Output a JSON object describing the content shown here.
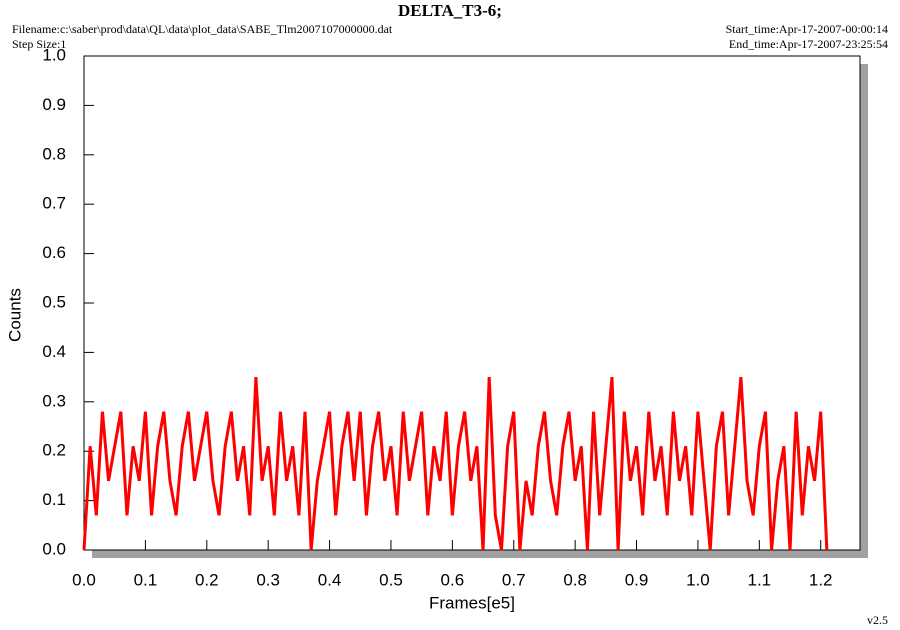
{
  "chart_data": {
    "type": "line",
    "title": "DELTA_T3-6;",
    "filename": "Filename:c:\\saber\\prod\\data\\QL\\data\\plot_data\\SABE_Tlm2007107000000.dat",
    "step_size": "Step Size:1",
    "start_time": "Start_time:Apr-17-2007-00:00:14",
    "end_time": "End_time:Apr-17-2007-23:25:54",
    "version": "v2.5",
    "x_label": "Frames[e5]",
    "y_label": "Counts",
    "color": "#ff0000",
    "xlim": [
      0,
      1.264
    ],
    "ylim": [
      0,
      1.0
    ],
    "xticks": [
      {
        "value": 0,
        "label": "0.0"
      },
      0.1,
      0.2,
      0.3,
      0.4,
      0.5,
      0.6,
      0.7,
      0.8,
      0.9,
      {
        "value": 1,
        "label": "1.0"
      },
      1.1,
      1.2
    ],
    "yticks": [
      {
        "value": 0,
        "label": "0.0"
      },
      0.1,
      0.2,
      0.3,
      0.4,
      0.5,
      0.6,
      0.7,
      0.8,
      0.9,
      {
        "value": 1,
        "label": "1.0"
      }
    ],
    "x": [
      0,
      0.01,
      0.02,
      0.03,
      0.04,
      0.05,
      0.06,
      0.07,
      0.08,
      0.09,
      0.1,
      0.11,
      0.12,
      0.13,
      0.14,
      0.15,
      0.16,
      0.17,
      0.18,
      0.19,
      0.2,
      0.21,
      0.22,
      0.23,
      0.24,
      0.25,
      0.26,
      0.27,
      0.28,
      0.29,
      0.3,
      0.31,
      0.32,
      0.33,
      0.34,
      0.35,
      0.36,
      0.37,
      0.38,
      0.39,
      0.4,
      0.41,
      0.42,
      0.43,
      0.44,
      0.45,
      0.46,
      0.47,
      0.48,
      0.49,
      0.5,
      0.51,
      0.52,
      0.53,
      0.54,
      0.55,
      0.56,
      0.57,
      0.58,
      0.59,
      0.6,
      0.61,
      0.62,
      0.63,
      0.64,
      0.65,
      0.66,
      0.67,
      0.68,
      0.69,
      0.7,
      0.71,
      0.72,
      0.73,
      0.74,
      0.75,
      0.76,
      0.77,
      0.78,
      0.79,
      0.8,
      0.81,
      0.82,
      0.83,
      0.84,
      0.85,
      0.86,
      0.87,
      0.88,
      0.89,
      0.9,
      0.91,
      0.92,
      0.93,
      0.94,
      0.95,
      0.96,
      0.97,
      0.98,
      0.99,
      1,
      1.01,
      1.02,
      1.03,
      1.04,
      1.05,
      1.06,
      1.07,
      1.08,
      1.09,
      1.1,
      1.11,
      1.12,
      1.13,
      1.14,
      1.15,
      1.16,
      1.17,
      1.18,
      1.19,
      1.2,
      1.21
    ],
    "values": [
      0,
      0.21,
      0.07,
      0.28,
      0.14,
      0.21,
      0.28,
      0.07,
      0.21,
      0.14,
      0.28,
      0.07,
      0.21,
      0.28,
      0.14,
      0.07,
      0.21,
      0.28,
      0.14,
      0.21,
      0.28,
      0.14,
      0.07,
      0.21,
      0.28,
      0.14,
      0.21,
      0.07,
      0.35,
      0.14,
      0.21,
      0.07,
      0.28,
      0.14,
      0.21,
      0.07,
      0.28,
      0,
      0.14,
      0.21,
      0.28,
      0.07,
      0.21,
      0.28,
      0.14,
      0.28,
      0.07,
      0.21,
      0.28,
      0.14,
      0.21,
      0.07,
      0.28,
      0.14,
      0.21,
      0.28,
      0.07,
      0.21,
      0.14,
      0.28,
      0.07,
      0.21,
      0.28,
      0.14,
      0.21,
      0,
      0.35,
      0.07,
      0,
      0.21,
      0.28,
      0,
      0.14,
      0.07,
      0.21,
      0.28,
      0.14,
      0.07,
      0.21,
      0.28,
      0.14,
      0.21,
      0,
      0.28,
      0.07,
      0.21,
      0.35,
      0,
      0.28,
      0.14,
      0.21,
      0.07,
      0.28,
      0.14,
      0.21,
      0.07,
      0.28,
      0.14,
      0.21,
      0.07,
      0.28,
      0.14,
      0,
      0.21,
      0.28,
      0.07,
      0.21,
      0.35,
      0.14,
      0.07,
      0.21,
      0.28,
      0,
      0.14,
      0.21,
      0,
      0.28,
      0.07,
      0.21,
      0.14,
      0.28,
      0
    ]
  }
}
